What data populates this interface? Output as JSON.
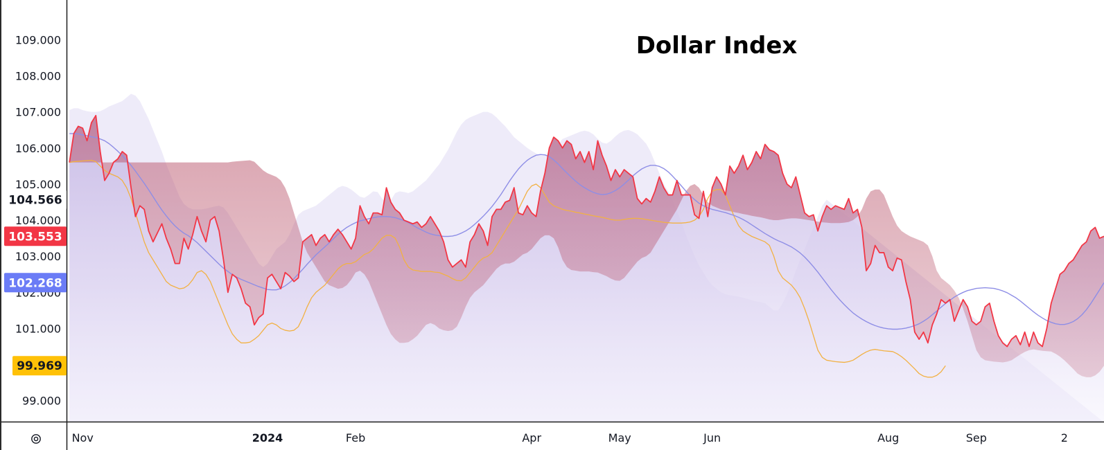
{
  "chart_data": {
    "type": "area",
    "title": "Dollar Index",
    "ylim": [
      98.4,
      110.1
    ],
    "y_ticks": [
      99,
      101,
      102,
      103,
      104,
      105,
      106,
      107,
      108,
      109
    ],
    "y_tick_labels": [
      "99.000",
      "101.000",
      "102.000",
      "103.000",
      "104.000",
      "105.000",
      "106.000",
      "107.000",
      "108.000",
      "109.000"
    ],
    "x_range": [
      -0.5,
      235
    ],
    "x_ticks": [
      {
        "label": "Nov",
        "pos": 3,
        "bold": false
      },
      {
        "label": "2024",
        "pos": 45,
        "bold": true
      },
      {
        "label": "Feb",
        "pos": 65,
        "bold": false
      },
      {
        "label": "Apr",
        "pos": 105,
        "bold": false
      },
      {
        "label": "May",
        "pos": 125,
        "bold": false
      },
      {
        "label": "Jun",
        "pos": 146,
        "bold": false
      },
      {
        "label": "Aug",
        "pos": 186,
        "bold": false
      },
      {
        "label": "Sep",
        "pos": 206,
        "bold": false
      },
      {
        "label": "2",
        "pos": 226,
        "bold": false
      }
    ],
    "value_badges": [
      {
        "value": "104.566",
        "y": 104.566,
        "color": "#ffffff",
        "text_color": "#131722"
      },
      {
        "value": "103.553",
        "y": 103.553,
        "color": "#f23645",
        "text_color": "#ffffff"
      },
      {
        "value": "102.268",
        "y": 102.268,
        "color": "#6b7cf6",
        "text_color": "#ffffff"
      },
      {
        "value": "99.969",
        "y": 99.969,
        "color": "#ffc107",
        "text_color": "#131722"
      }
    ],
    "colors": {
      "price": "#f23645",
      "middle": "#8e8ee6",
      "lower": "#f2b143",
      "band_fill": "#d9d2f2",
      "fill_top": "#cbbde6",
      "price_fill": "#c05a6e"
    },
    "series": [
      {
        "name": "",
        "role": "price",
        "values": [
          105.6,
          106.4,
          106.6,
          106.55,
          106.2,
          106.7,
          106.9,
          105.9,
          105.1,
          105.3,
          105.6,
          105.7,
          105.9,
          105.8,
          104.9,
          104.1,
          104.4,
          104.3,
          103.7,
          103.4,
          103.65,
          103.9,
          103.5,
          103.2,
          102.8,
          102.8,
          103.5,
          103.2,
          103.6,
          104.1,
          103.7,
          103.4,
          104.0,
          104.1,
          103.7,
          102.9,
          102.0,
          102.5,
          102.4,
          102.1,
          101.7,
          101.6,
          101.1,
          101.3,
          101.4,
          102.4,
          102.5,
          102.3,
          102.1,
          102.55,
          102.45,
          102.3,
          102.4,
          103.4,
          103.5,
          103.6,
          103.3,
          103.5,
          103.6,
          103.4,
          103.6,
          103.75,
          103.6,
          103.4,
          103.2,
          103.5,
          104.4,
          104.1,
          103.9,
          104.2,
          104.2,
          104.15,
          104.9,
          104.5,
          104.3,
          104.2,
          104.0,
          103.95,
          103.9,
          103.95,
          103.8,
          103.9,
          104.1,
          103.9,
          103.7,
          103.4,
          102.9,
          102.7,
          102.8,
          102.9,
          102.7,
          103.4,
          103.6,
          103.9,
          103.7,
          103.3,
          104.1,
          104.3,
          104.3,
          104.5,
          104.55,
          104.9,
          104.2,
          104.15,
          104.4,
          104.2,
          104.1,
          104.8,
          105.3,
          106.0,
          106.3,
          106.2,
          106.0,
          106.2,
          106.1,
          105.7,
          105.9,
          105.6,
          105.9,
          105.4,
          106.2,
          105.8,
          105.5,
          105.1,
          105.4,
          105.2,
          105.4,
          105.3,
          105.2,
          104.6,
          104.45,
          104.6,
          104.5,
          104.8,
          105.2,
          104.9,
          104.7,
          104.7,
          105.1,
          104.7,
          104.7,
          104.7,
          104.15,
          104.05,
          104.8,
          104.1,
          104.9,
          105.2,
          105.0,
          104.7,
          105.5,
          105.3,
          105.5,
          105.8,
          105.4,
          105.6,
          105.9,
          105.7,
          106.1,
          105.95,
          105.9,
          105.8,
          105.3,
          105.0,
          104.9,
          105.2,
          104.7,
          104.2,
          104.1,
          104.15,
          103.7,
          104.1,
          104.4,
          104.3,
          104.4,
          104.35,
          104.3,
          104.6,
          104.2,
          104.3,
          103.8,
          102.6,
          102.8,
          103.3,
          103.1,
          103.1,
          102.7,
          102.6,
          102.95,
          102.9,
          102.3,
          101.8,
          100.9,
          100.7,
          100.9,
          100.6,
          101.1,
          101.4,
          101.8,
          101.7,
          101.8,
          101.2,
          101.5,
          101.8,
          101.6,
          101.2,
          101.1,
          101.2,
          101.6,
          101.7,
          101.2,
          100.8,
          100.6,
          100.5,
          100.7,
          100.8,
          100.55,
          100.9,
          100.5,
          100.9,
          100.6,
          100.5,
          101.0,
          101.7,
          102.1,
          102.5,
          102.6,
          102.8,
          102.9,
          103.1,
          103.3,
          103.4,
          103.7,
          103.8,
          103.5,
          103.553
        ]
      },
      {
        "name": "",
        "role": "middle",
        "values": [
          106.4,
          106.4,
          106.39,
          106.36,
          106.34,
          106.31,
          106.29,
          106.25,
          106.2,
          106.12,
          106.02,
          105.91,
          105.79,
          105.66,
          105.52,
          105.36,
          105.19,
          105.02,
          104.84,
          104.65,
          104.46,
          104.28,
          104.12,
          103.97,
          103.84,
          103.73,
          103.64,
          103.57,
          103.48,
          103.38,
          103.26,
          103.14,
          103.02,
          102.9,
          102.78,
          102.67,
          102.58,
          102.49,
          102.42,
          102.36,
          102.31,
          102.26,
          102.21,
          102.16,
          102.12,
          102.08,
          102.07,
          102.07,
          102.11,
          102.18,
          102.27,
          102.38,
          102.51,
          102.64,
          102.78,
          102.91,
          103.04,
          103.15,
          103.26,
          103.37,
          103.49,
          103.61,
          103.71,
          103.8,
          103.87,
          103.93,
          103.98,
          104.01,
          104.04,
          104.07,
          104.09,
          104.1,
          104.1,
          104.09,
          104.07,
          104.03,
          103.99,
          103.93,
          103.86,
          103.79,
          103.73,
          103.67,
          103.62,
          103.59,
          103.57,
          103.55,
          103.55,
          103.56,
          103.59,
          103.64,
          103.7,
          103.78,
          103.88,
          103.99,
          104.11,
          104.24,
          104.38,
          104.54,
          104.71,
          104.9,
          105.09,
          105.26,
          105.42,
          105.55,
          105.66,
          105.74,
          105.8,
          105.82,
          105.81,
          105.76,
          105.67,
          105.56,
          105.43,
          105.31,
          105.19,
          105.08,
          104.98,
          104.9,
          104.83,
          104.77,
          104.73,
          104.71,
          104.72,
          104.76,
          104.82,
          104.9,
          105.0,
          105.11,
          105.23,
          105.33,
          105.42,
          105.48,
          105.52,
          105.52,
          105.49,
          105.43,
          105.34,
          105.22,
          105.09,
          104.95,
          104.81,
          104.68,
          104.57,
          104.47,
          104.4,
          104.34,
          104.3,
          104.27,
          104.24,
          104.21,
          104.17,
          104.13,
          104.08,
          104.02,
          103.95,
          103.87,
          103.79,
          103.71,
          103.63,
          103.56,
          103.49,
          103.43,
          103.38,
          103.32,
          103.26,
          103.18,
          103.09,
          102.98,
          102.85,
          102.71,
          102.56,
          102.4,
          102.24,
          102.08,
          101.93,
          101.79,
          101.66,
          101.54,
          101.43,
          101.34,
          101.26,
          101.19,
          101.13,
          101.08,
          101.04,
          101.01,
          100.99,
          100.98,
          100.98,
          100.99,
          101.01,
          101.04,
          101.08,
          101.13,
          101.2,
          101.28,
          101.38,
          101.48,
          101.59,
          101.69,
          101.78,
          101.87,
          101.94,
          102.0,
          102.05,
          102.08,
          102.11,
          102.12,
          102.13,
          102.12,
          102.11,
          102.08,
          102.04,
          101.99,
          101.92,
          101.85,
          101.76,
          101.66,
          101.56,
          101.46,
          101.37,
          101.29,
          101.22,
          101.17,
          101.13,
          101.11,
          101.11,
          101.14,
          101.19,
          101.27,
          101.38,
          101.52,
          101.69,
          101.88,
          102.07,
          102.268
        ]
      },
      {
        "name": "",
        "role": "lower",
        "values": [
          105.6,
          105.62,
          105.63,
          105.64,
          105.65,
          105.66,
          105.62,
          105.5,
          105.38,
          105.3,
          105.25,
          105.2,
          105.1,
          104.9,
          104.6,
          104.2,
          103.8,
          103.4,
          103.1,
          102.9,
          102.7,
          102.5,
          102.3,
          102.2,
          102.15,
          102.1,
          102.12,
          102.2,
          102.35,
          102.55,
          102.6,
          102.5,
          102.3,
          102.0,
          101.7,
          101.4,
          101.1,
          100.85,
          100.7,
          100.6,
          100.6,
          100.62,
          100.7,
          100.8,
          100.95,
          101.1,
          101.15,
          101.1,
          101.0,
          100.95,
          100.93,
          100.95,
          101.05,
          101.3,
          101.6,
          101.85,
          102.0,
          102.1,
          102.2,
          102.35,
          102.5,
          102.65,
          102.75,
          102.8,
          102.8,
          102.85,
          102.95,
          103.05,
          103.1,
          103.2,
          103.35,
          103.5,
          103.58,
          103.58,
          103.5,
          103.25,
          102.9,
          102.7,
          102.62,
          102.6,
          102.58,
          102.58,
          102.58,
          102.56,
          102.55,
          102.5,
          102.45,
          102.38,
          102.33,
          102.32,
          102.4,
          102.55,
          102.7,
          102.85,
          102.95,
          103.0,
          103.1,
          103.3,
          103.5,
          103.7,
          103.9,
          104.1,
          104.3,
          104.55,
          104.8,
          104.95,
          105.0,
          104.9,
          104.7,
          104.5,
          104.4,
          104.35,
          104.3,
          104.27,
          104.25,
          104.22,
          104.2,
          104.17,
          104.15,
          104.12,
          104.1,
          104.08,
          104.05,
          104.02,
          104.0,
          104.0,
          104.02,
          104.04,
          104.05,
          104.05,
          104.04,
          104.02,
          104.0,
          103.98,
          103.96,
          103.94,
          103.93,
          103.92,
          103.92,
          103.92,
          103.93,
          103.95,
          104.0,
          104.1,
          104.3,
          104.6,
          104.8,
          104.85,
          104.85,
          104.7,
          104.4,
          104.1,
          103.85,
          103.7,
          103.62,
          103.55,
          103.5,
          103.45,
          103.4,
          103.3,
          103.0,
          102.6,
          102.4,
          102.3,
          102.2,
          102.05,
          101.85,
          101.55,
          101.2,
          100.8,
          100.4,
          100.2,
          100.12,
          100.1,
          100.08,
          100.07,
          100.06,
          100.08,
          100.12,
          100.2,
          100.28,
          100.35,
          100.4,
          100.42,
          100.4,
          100.38,
          100.37,
          100.36,
          100.3,
          100.22,
          100.12,
          100.0,
          99.88,
          99.75,
          99.68,
          99.65,
          99.65,
          99.7,
          99.8,
          99.969
        ]
      },
      {
        "name": "",
        "role": "upper",
        "values": [
          107.05,
          107.1,
          107.1,
          107.05,
          107.02,
          107.0,
          107.0,
          107.02,
          107.08,
          107.15,
          107.2,
          107.25,
          107.3,
          107.4,
          107.5,
          107.45,
          107.3,
          107.05,
          106.8,
          106.5,
          106.2,
          105.9,
          105.55,
          105.25,
          104.95,
          104.65,
          104.45,
          104.35,
          104.3,
          104.3,
          104.3,
          104.32,
          104.35,
          104.38,
          104.4,
          104.35,
          104.2,
          104.0,
          103.8,
          103.6,
          103.4,
          103.2,
          103.0,
          102.8,
          102.7,
          102.8,
          103.0,
          103.2,
          103.3,
          103.4,
          103.6,
          103.9,
          104.15,
          104.25,
          104.3,
          104.35,
          104.4,
          104.5,
          104.6,
          104.7,
          104.8,
          104.9,
          104.95,
          104.92,
          104.85,
          104.75,
          104.65,
          104.62,
          104.7,
          104.8,
          104.78,
          104.6,
          104.5,
          104.55,
          104.75,
          104.8,
          104.78,
          104.75,
          104.8,
          104.9,
          105.0,
          105.1,
          105.25,
          105.4,
          105.55,
          105.75,
          105.95,
          106.2,
          106.45,
          106.65,
          106.78,
          106.85,
          106.9,
          106.95,
          107.0,
          107.0,
          106.95,
          106.85,
          106.72,
          106.6,
          106.45,
          106.3,
          106.2,
          106.1,
          106.0,
          105.92,
          105.85,
          105.8,
          105.8,
          105.85,
          105.95,
          106.1,
          106.25,
          106.3,
          106.35,
          106.4,
          106.45,
          106.48,
          106.45,
          106.38,
          106.25,
          106.15,
          106.12,
          106.2,
          106.32,
          106.42,
          106.48,
          106.5,
          106.45,
          106.38,
          106.25,
          106.12,
          105.9,
          105.6,
          105.3,
          105.0,
          104.8,
          104.55,
          104.25,
          103.95,
          103.6,
          103.3,
          103.0,
          102.75,
          102.55,
          102.35,
          102.2,
          102.1,
          102.0,
          101.95,
          101.92,
          101.9,
          101.88,
          101.85,
          101.82,
          101.78,
          101.75,
          101.73,
          101.7,
          101.6,
          101.5,
          101.5,
          101.7,
          101.95,
          102.25,
          102.6,
          102.9,
          103.2,
          103.5,
          103.8,
          104.1,
          104.4,
          104.566
        ]
      }
    ]
  },
  "footer": {
    "settings_icon": "gear-icon"
  }
}
